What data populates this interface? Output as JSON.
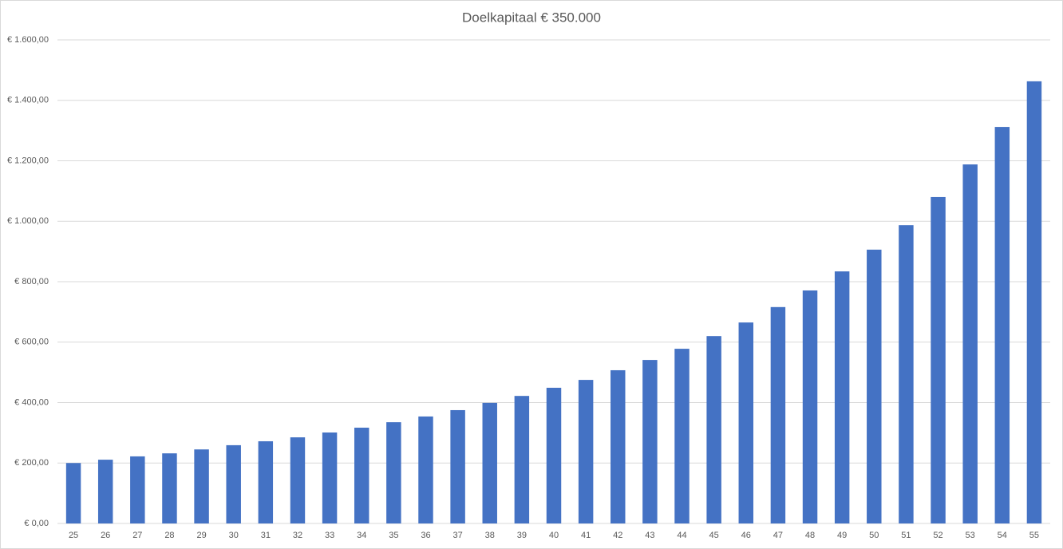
{
  "chart_data": {
    "type": "bar",
    "title": "Doelkapitaal € 350.000",
    "categories": [
      "25",
      "26",
      "27",
      "28",
      "29",
      "30",
      "31",
      "32",
      "33",
      "34",
      "35",
      "36",
      "37",
      "38",
      "39",
      "40",
      "41",
      "42",
      "43",
      "44",
      "45",
      "46",
      "47",
      "48",
      "49",
      "50",
      "51",
      "52",
      "53",
      "54",
      "55"
    ],
    "values": [
      200,
      211,
      222,
      232,
      245,
      259,
      272,
      285,
      301,
      317,
      335,
      354,
      375,
      399,
      422,
      449,
      475,
      507,
      541,
      578,
      620,
      665,
      716,
      771,
      834,
      906,
      987,
      1080,
      1188,
      1312,
      1463
    ],
    "color": "#4472c4",
    "ylim": [
      0,
      1600
    ],
    "yticks": [
      {
        "value": 0,
        "label": "€ 0,00"
      },
      {
        "value": 200,
        "label": "€ 200,00"
      },
      {
        "value": 400,
        "label": "€ 400,00"
      },
      {
        "value": 600,
        "label": "€ 600,00"
      },
      {
        "value": 800,
        "label": "€ 800,00"
      },
      {
        "value": 1000,
        "label": "€ 1.000,00"
      },
      {
        "value": 1200,
        "label": "€ 1.200,00"
      },
      {
        "value": 1400,
        "label": "€ 1.400,00"
      },
      {
        "value": 1600,
        "label": "€ 1.600,00"
      }
    ],
    "grid": true
  }
}
